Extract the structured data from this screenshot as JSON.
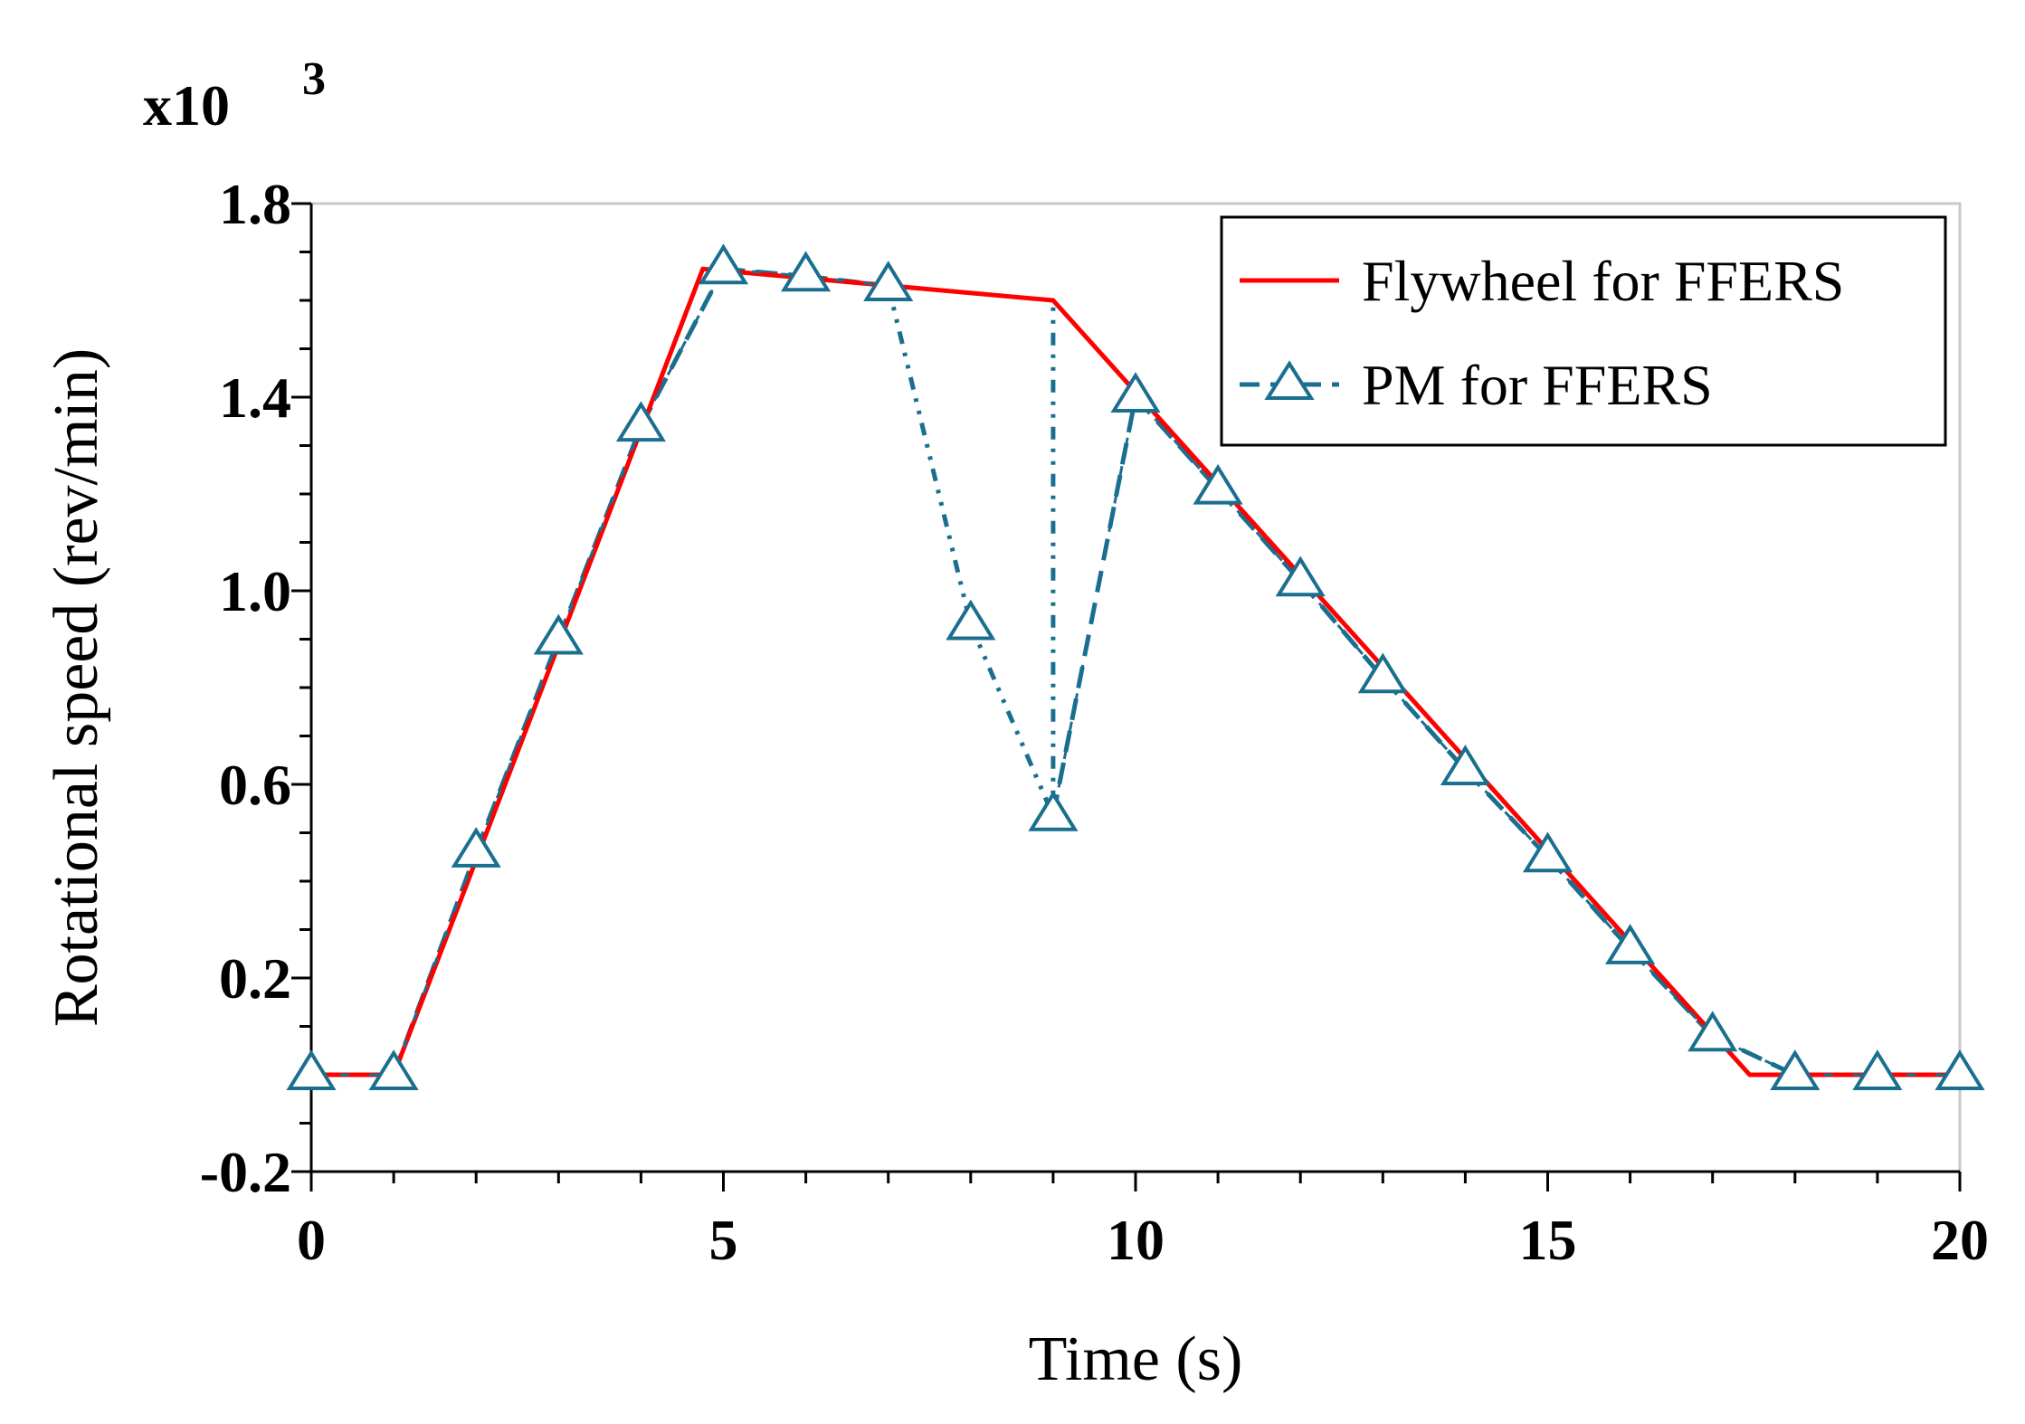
{
  "chart_data": {
    "type": "line",
    "title": "",
    "xlabel": "Time (s)",
    "ylabel": "Rotational speed (rev/min)",
    "y_multiplier_base": "x10",
    "y_multiplier_exp": "3",
    "xlim": [
      0,
      20
    ],
    "ylim": [
      -0.2,
      1.8
    ],
    "x_ticks": [
      0,
      5,
      10,
      15,
      20
    ],
    "x_tick_labels": [
      "0",
      "5",
      "10",
      "15",
      "20"
    ],
    "y_ticks": [
      -0.2,
      0.2,
      0.6,
      1.0,
      1.4,
      1.8
    ],
    "y_tick_labels": [
      "-0.2",
      "0.2",
      "0.6",
      "1.0",
      "1.4",
      "1.8"
    ],
    "grid": false,
    "legend_position": "top-right",
    "series": [
      {
        "name": "Flywheel for FFERS",
        "color": "#ff0000",
        "style": "solid",
        "marker": "none",
        "x": [
          0,
          1.0,
          4.75,
          9.0,
          17.45,
          20
        ],
        "y": [
          0.0,
          0.0,
          1.665,
          1.6,
          0.0,
          0.0
        ]
      },
      {
        "name": "PM for FFERS",
        "color": "#1a6f8f",
        "style": "dashed",
        "marker": "triangle",
        "x": [
          0,
          1,
          2,
          3,
          4,
          5,
          6,
          7,
          8,
          9,
          10,
          11,
          12,
          13,
          14,
          15,
          16,
          17,
          18,
          19,
          20
        ],
        "y": [
          0.0,
          0.0,
          0.46,
          0.9,
          1.34,
          1.665,
          1.65,
          1.63,
          0.93,
          0.535,
          1.4,
          1.21,
          1.02,
          0.82,
          0.63,
          0.45,
          0.26,
          0.08,
          0.0,
          0.0,
          0.0
        ]
      }
    ]
  }
}
